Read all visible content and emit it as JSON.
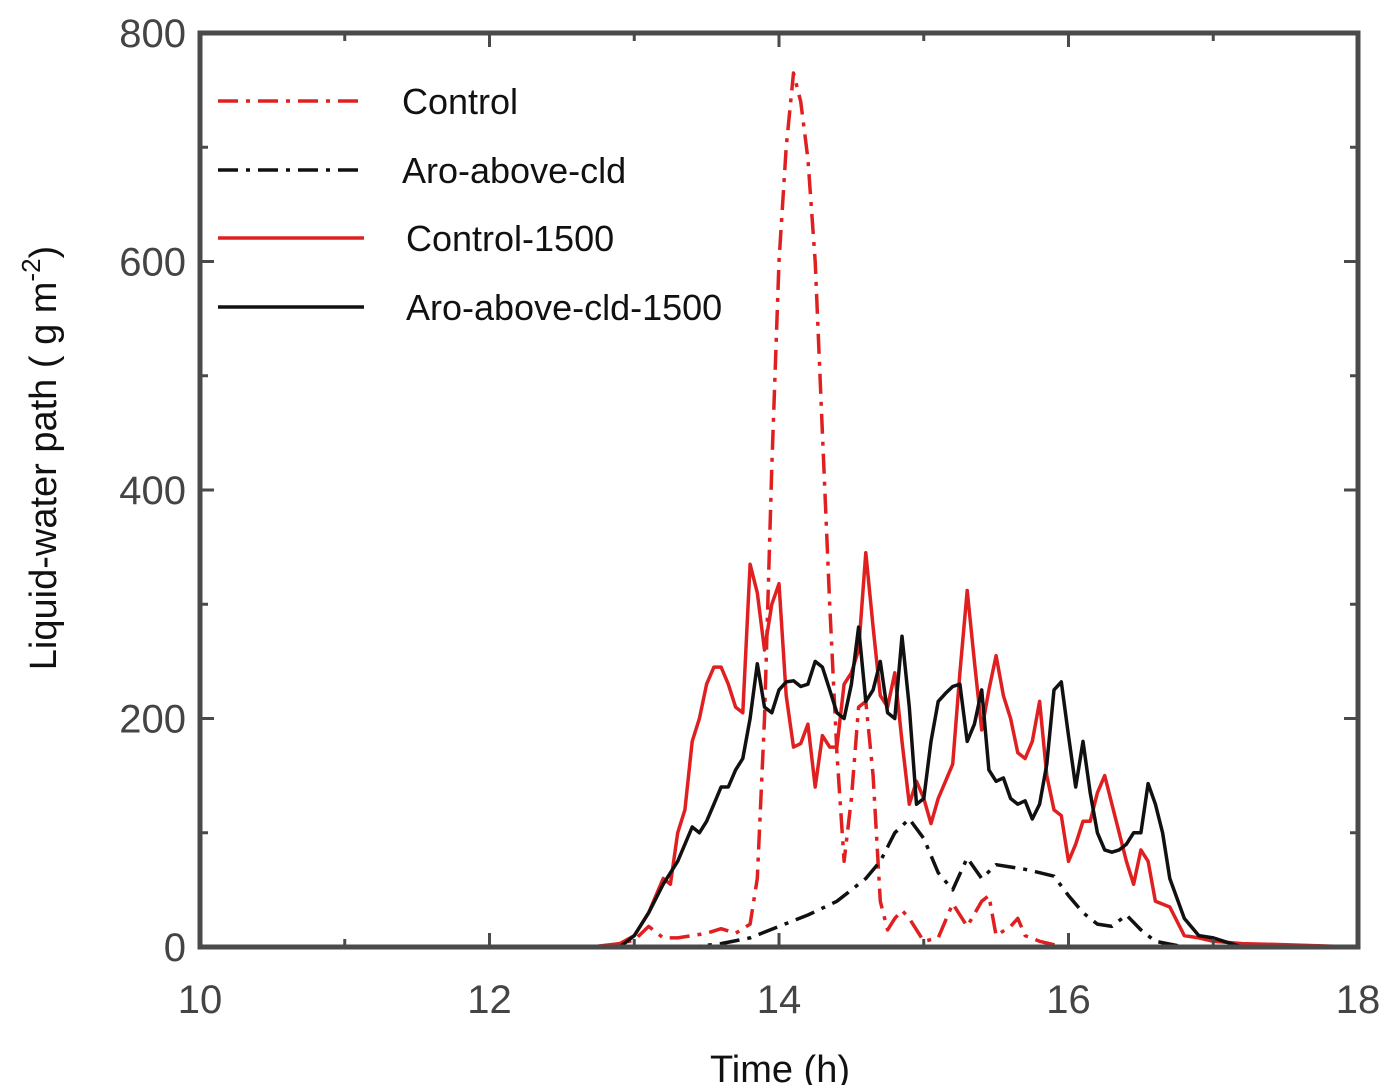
{
  "chart_data": {
    "type": "line",
    "xlabel": "Time (h)",
    "ylabel": {
      "main": "Liquid-water path ( g m",
      "sup": "-2",
      "close": ")"
    },
    "xlim": [
      10,
      18
    ],
    "ylim": [
      0,
      800
    ],
    "xticks": [
      10,
      12,
      14,
      16,
      18
    ],
    "xticks_minor": [
      11,
      13,
      15,
      17
    ],
    "yticks": [
      0,
      200,
      400,
      600,
      800
    ],
    "yticks_minor": [
      100,
      300,
      500,
      700
    ],
    "grid": false,
    "legend_position": "top-left",
    "series": [
      {
        "name": "Control",
        "color": "#e02020",
        "style": "dashdot",
        "points": [
          [
            10,
            0
          ],
          [
            12.8,
            0
          ],
          [
            13.0,
            6
          ],
          [
            13.1,
            18
          ],
          [
            13.2,
            8
          ],
          [
            13.3,
            8
          ],
          [
            13.4,
            10
          ],
          [
            13.5,
            12
          ],
          [
            13.6,
            16
          ],
          [
            13.7,
            12
          ],
          [
            13.8,
            20
          ],
          [
            13.85,
            60
          ],
          [
            13.9,
            200
          ],
          [
            13.95,
            420
          ],
          [
            14.0,
            600
          ],
          [
            14.05,
            700
          ],
          [
            14.1,
            765
          ],
          [
            14.15,
            740
          ],
          [
            14.2,
            690
          ],
          [
            14.25,
            600
          ],
          [
            14.3,
            450
          ],
          [
            14.35,
            300
          ],
          [
            14.4,
            170
          ],
          [
            14.45,
            75
          ],
          [
            14.5,
            130
          ],
          [
            14.55,
            210
          ],
          [
            14.6,
            215
          ],
          [
            14.65,
            150
          ],
          [
            14.7,
            40
          ],
          [
            14.75,
            15
          ],
          [
            14.8,
            25
          ],
          [
            14.85,
            32
          ],
          [
            14.9,
            25
          ],
          [
            15.0,
            5
          ],
          [
            15.1,
            8
          ],
          [
            15.2,
            38
          ],
          [
            15.3,
            18
          ],
          [
            15.4,
            40
          ],
          [
            15.45,
            45
          ],
          [
            15.5,
            10
          ],
          [
            15.6,
            18
          ],
          [
            15.65,
            25
          ],
          [
            15.7,
            10
          ],
          [
            15.8,
            5
          ],
          [
            15.9,
            2
          ],
          [
            16.0,
            0
          ],
          [
            16.5,
            0
          ],
          [
            18,
            0
          ]
        ]
      },
      {
        "name": "Aro-above-cld",
        "color": "#111111",
        "style": "dashdot",
        "points": [
          [
            10,
            0
          ],
          [
            13.4,
            0
          ],
          [
            13.6,
            3
          ],
          [
            13.8,
            8
          ],
          [
            14.0,
            18
          ],
          [
            14.2,
            28
          ],
          [
            14.4,
            40
          ],
          [
            14.5,
            50
          ],
          [
            14.6,
            60
          ],
          [
            14.7,
            75
          ],
          [
            14.8,
            100
          ],
          [
            14.9,
            112
          ],
          [
            15.0,
            95
          ],
          [
            15.1,
            65
          ],
          [
            15.2,
            50
          ],
          [
            15.3,
            78
          ],
          [
            15.4,
            60
          ],
          [
            15.5,
            72
          ],
          [
            15.6,
            70
          ],
          [
            15.7,
            68
          ],
          [
            15.8,
            65
          ],
          [
            15.9,
            62
          ],
          [
            16.0,
            45
          ],
          [
            16.1,
            30
          ],
          [
            16.2,
            20
          ],
          [
            16.3,
            18
          ],
          [
            16.4,
            28
          ],
          [
            16.5,
            15
          ],
          [
            16.6,
            5
          ],
          [
            16.8,
            0
          ],
          [
            18,
            0
          ]
        ]
      },
      {
        "name": "Control-1500",
        "color": "#e02020",
        "style": "solid",
        "points": [
          [
            10,
            0
          ],
          [
            12.7,
            0
          ],
          [
            12.9,
            3
          ],
          [
            13.0,
            10
          ],
          [
            13.1,
            30
          ],
          [
            13.2,
            60
          ],
          [
            13.25,
            55
          ],
          [
            13.3,
            100
          ],
          [
            13.35,
            120
          ],
          [
            13.4,
            180
          ],
          [
            13.45,
            200
          ],
          [
            13.5,
            230
          ],
          [
            13.55,
            245
          ],
          [
            13.6,
            245
          ],
          [
            13.65,
            230
          ],
          [
            13.7,
            210
          ],
          [
            13.75,
            205
          ],
          [
            13.8,
            335
          ],
          [
            13.85,
            310
          ],
          [
            13.9,
            260
          ],
          [
            13.95,
            300
          ],
          [
            14.0,
            318
          ],
          [
            14.05,
            220
          ],
          [
            14.1,
            175
          ],
          [
            14.15,
            178
          ],
          [
            14.2,
            195
          ],
          [
            14.25,
            140
          ],
          [
            14.3,
            185
          ],
          [
            14.35,
            175
          ],
          [
            14.4,
            175
          ],
          [
            14.45,
            230
          ],
          [
            14.5,
            240
          ],
          [
            14.55,
            260
          ],
          [
            14.6,
            345
          ],
          [
            14.65,
            280
          ],
          [
            14.7,
            220
          ],
          [
            14.75,
            210
          ],
          [
            14.8,
            240
          ],
          [
            14.85,
            180
          ],
          [
            14.9,
            125
          ],
          [
            14.95,
            145
          ],
          [
            15.0,
            130
          ],
          [
            15.05,
            108
          ],
          [
            15.1,
            130
          ],
          [
            15.15,
            145
          ],
          [
            15.2,
            160
          ],
          [
            15.25,
            240
          ],
          [
            15.3,
            312
          ],
          [
            15.35,
            250
          ],
          [
            15.4,
            190
          ],
          [
            15.45,
            225
          ],
          [
            15.5,
            255
          ],
          [
            15.55,
            220
          ],
          [
            15.6,
            200
          ],
          [
            15.65,
            170
          ],
          [
            15.7,
            165
          ],
          [
            15.75,
            180
          ],
          [
            15.8,
            215
          ],
          [
            15.85,
            150
          ],
          [
            15.9,
            120
          ],
          [
            15.95,
            115
          ],
          [
            16.0,
            75
          ],
          [
            16.05,
            90
          ],
          [
            16.1,
            110
          ],
          [
            16.15,
            110
          ],
          [
            16.2,
            135
          ],
          [
            16.25,
            150
          ],
          [
            16.3,
            125
          ],
          [
            16.35,
            100
          ],
          [
            16.4,
            75
          ],
          [
            16.45,
            55
          ],
          [
            16.5,
            85
          ],
          [
            16.55,
            75
          ],
          [
            16.6,
            40
          ],
          [
            16.7,
            35
          ],
          [
            16.8,
            10
          ],
          [
            16.9,
            8
          ],
          [
            17.0,
            5
          ],
          [
            17.2,
            3
          ],
          [
            17.5,
            2
          ],
          [
            18,
            0
          ]
        ]
      },
      {
        "name": "Aro-above-cld-1500",
        "color": "#111111",
        "style": "solid",
        "points": [
          [
            10,
            0
          ],
          [
            12.9,
            0
          ],
          [
            13.0,
            10
          ],
          [
            13.1,
            30
          ],
          [
            13.2,
            55
          ],
          [
            13.3,
            75
          ],
          [
            13.4,
            105
          ],
          [
            13.45,
            100
          ],
          [
            13.5,
            110
          ],
          [
            13.55,
            125
          ],
          [
            13.6,
            140
          ],
          [
            13.65,
            140
          ],
          [
            13.7,
            155
          ],
          [
            13.75,
            165
          ],
          [
            13.8,
            200
          ],
          [
            13.85,
            248
          ],
          [
            13.9,
            210
          ],
          [
            13.95,
            205
          ],
          [
            14.0,
            225
          ],
          [
            14.05,
            232
          ],
          [
            14.1,
            233
          ],
          [
            14.15,
            228
          ],
          [
            14.2,
            230
          ],
          [
            14.25,
            250
          ],
          [
            14.3,
            245
          ],
          [
            14.35,
            225
          ],
          [
            14.4,
            205
          ],
          [
            14.45,
            200
          ],
          [
            14.5,
            230
          ],
          [
            14.55,
            280
          ],
          [
            14.6,
            215
          ],
          [
            14.65,
            225
          ],
          [
            14.7,
            250
          ],
          [
            14.75,
            205
          ],
          [
            14.8,
            200
          ],
          [
            14.85,
            272
          ],
          [
            14.9,
            210
          ],
          [
            14.95,
            125
          ],
          [
            15.0,
            130
          ],
          [
            15.05,
            180
          ],
          [
            15.1,
            215
          ],
          [
            15.15,
            222
          ],
          [
            15.2,
            228
          ],
          [
            15.25,
            230
          ],
          [
            15.3,
            180
          ],
          [
            15.35,
            195
          ],
          [
            15.4,
            225
          ],
          [
            15.45,
            155
          ],
          [
            15.5,
            145
          ],
          [
            15.55,
            148
          ],
          [
            15.6,
            130
          ],
          [
            15.65,
            125
          ],
          [
            15.7,
            128
          ],
          [
            15.75,
            112
          ],
          [
            15.8,
            125
          ],
          [
            15.85,
            160
          ],
          [
            15.9,
            225
          ],
          [
            15.95,
            232
          ],
          [
            16.0,
            185
          ],
          [
            16.05,
            140
          ],
          [
            16.1,
            180
          ],
          [
            16.15,
            135
          ],
          [
            16.2,
            100
          ],
          [
            16.25,
            85
          ],
          [
            16.3,
            83
          ],
          [
            16.35,
            85
          ],
          [
            16.4,
            90
          ],
          [
            16.45,
            100
          ],
          [
            16.5,
            100
          ],
          [
            16.55,
            143
          ],
          [
            16.6,
            125
          ],
          [
            16.65,
            100
          ],
          [
            16.7,
            60
          ],
          [
            16.8,
            25
          ],
          [
            16.9,
            10
          ],
          [
            17.0,
            8
          ],
          [
            17.2,
            0
          ],
          [
            18,
            0
          ]
        ]
      }
    ]
  }
}
